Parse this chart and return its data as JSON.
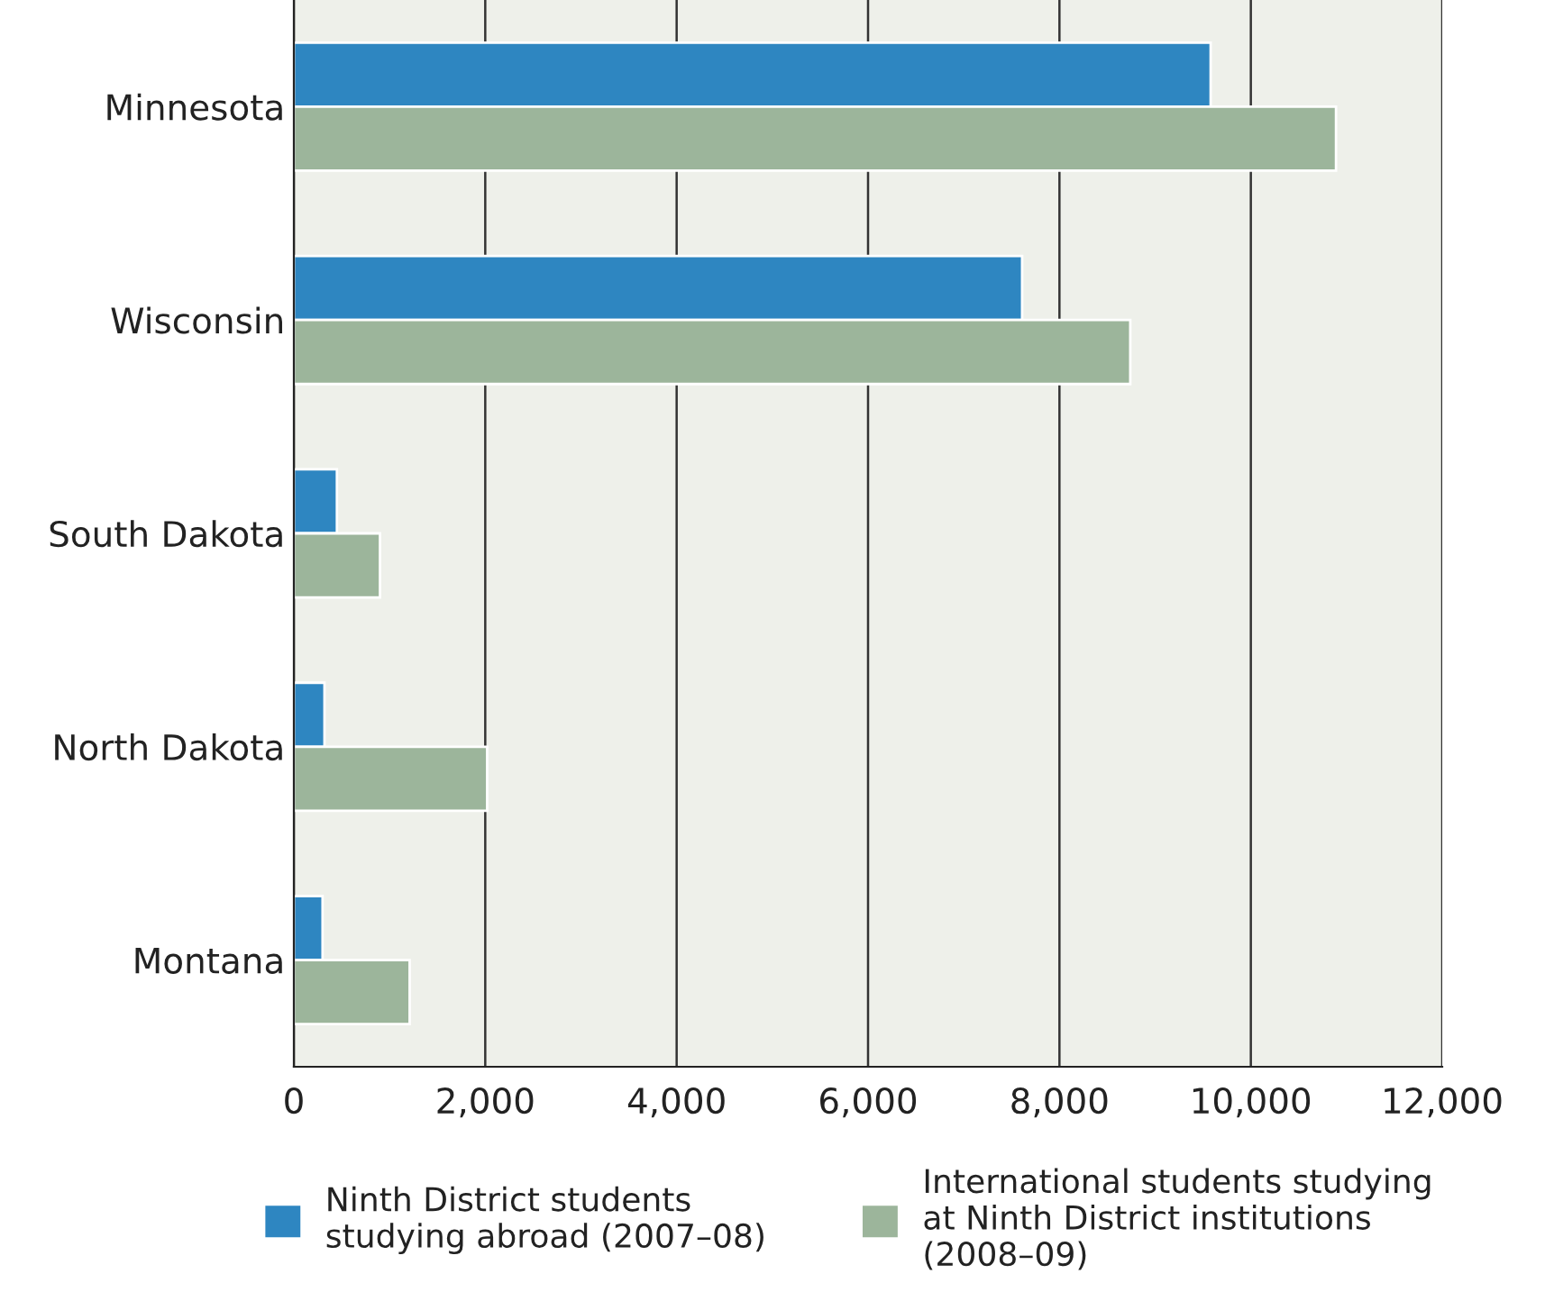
{
  "chart_data": {
    "type": "bar",
    "orientation": "horizontal",
    "categories": [
      "Minnesota",
      "Wisconsin",
      "South Dakota",
      "North Dakota",
      "Montana"
    ],
    "series": [
      {
        "name": "Ninth District students\nstudying abroad (2007–08)",
        "color": "#2e86c1",
        "values": [
          9580,
          7610,
          450,
          320,
          300
        ]
      },
      {
        "name": "International students studying\nat Ninth District institutions\n(2008–09)",
        "color": "#9cb59b",
        "values": [
          10890,
          8740,
          900,
          2020,
          1210
        ]
      }
    ],
    "xlim": [
      0,
      12000
    ],
    "xticks": [
      0,
      {
        "value": 2000,
        "label": "2,000"
      },
      {
        "value": 4000,
        "label": "4,000"
      },
      {
        "value": 6000,
        "label": "6,000"
      },
      {
        "value": 8000,
        "label": "8,000"
      },
      {
        "value": 10000,
        "label": "10,000"
      },
      {
        "value": 12000,
        "label": "12,000"
      }
    ],
    "grid": "x",
    "legend": "bottom"
  }
}
